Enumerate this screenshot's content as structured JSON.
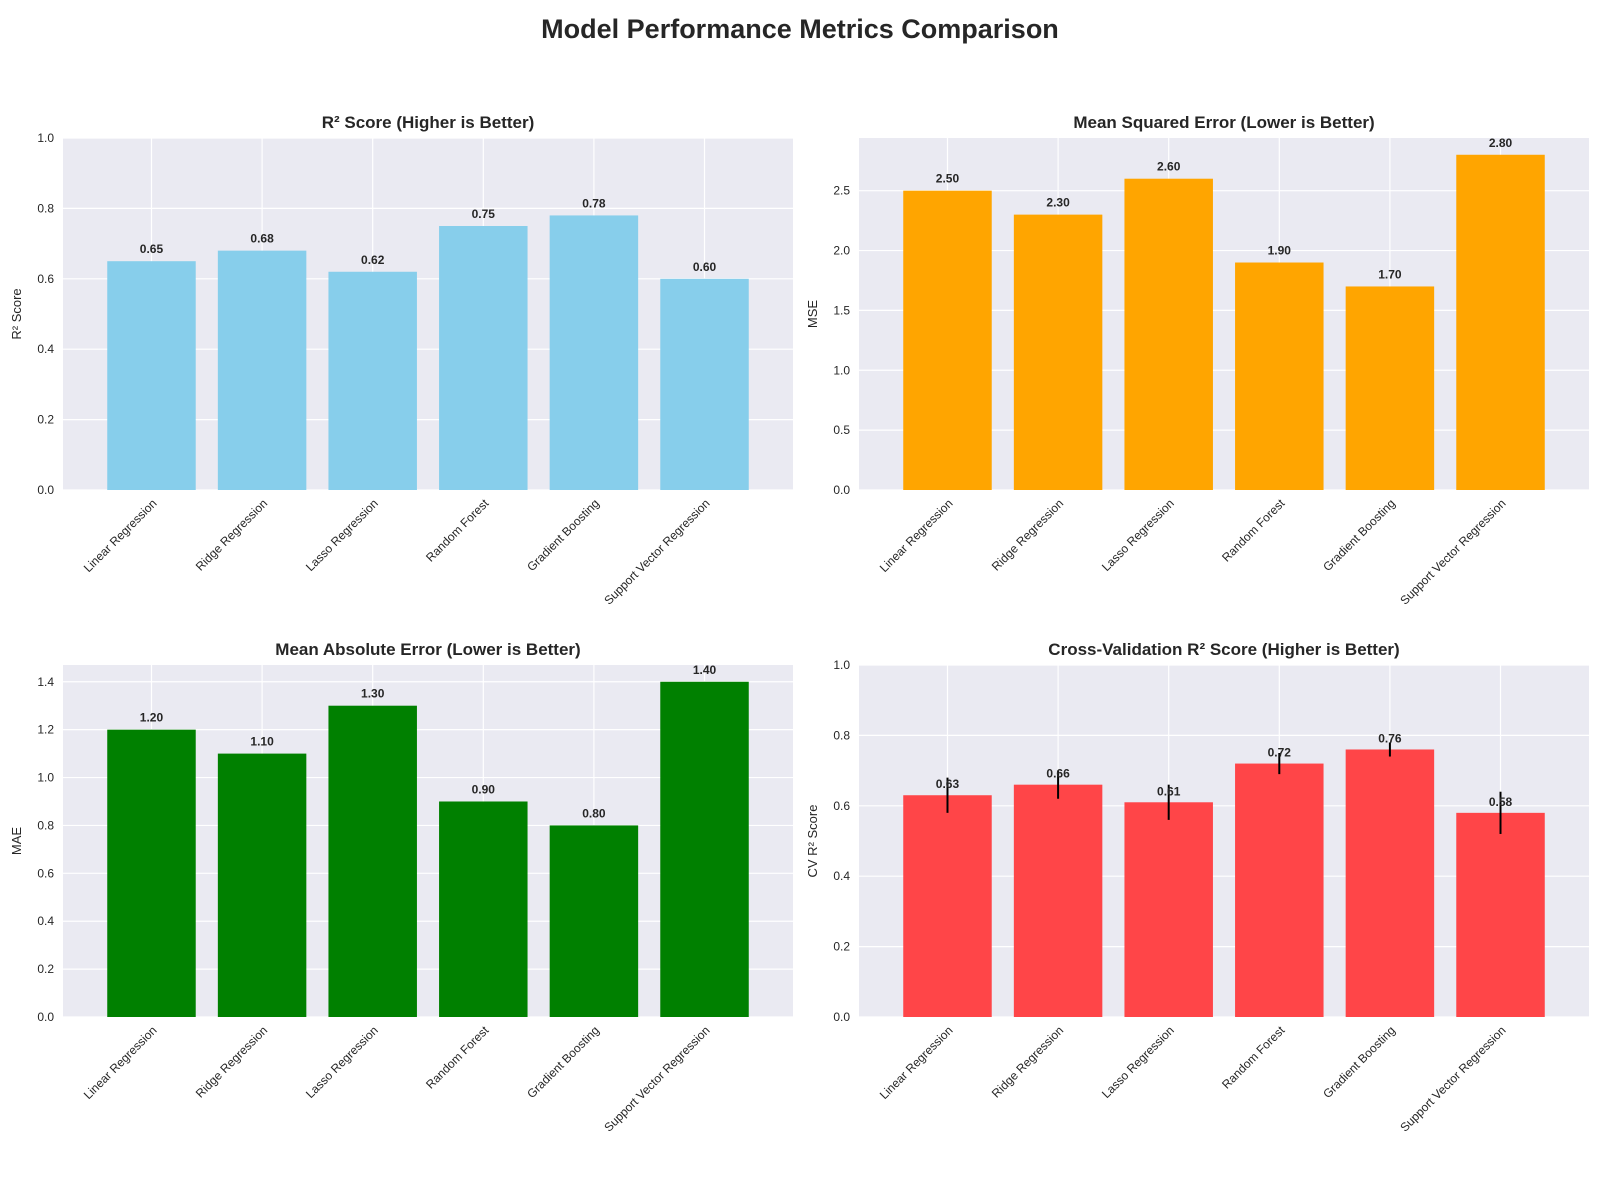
{
  "figure": {
    "title": "Model Performance Metrics Comparison"
  },
  "chart_data": [
    {
      "type": "bar",
      "title": "R² Score (Higher is Better)",
      "xlabel": "",
      "ylabel": "R² Score",
      "categories": [
        "Linear Regression",
        "Ridge Regression",
        "Lasso Regression",
        "Random Forest",
        "Gradient Boosting",
        "Support Vector Regression"
      ],
      "values": [
        0.65,
        0.68,
        0.62,
        0.75,
        0.78,
        0.6
      ],
      "value_labels": [
        "0.65",
        "0.68",
        "0.62",
        "0.75",
        "0.78",
        "0.60"
      ],
      "ylim": [
        0,
        1.0
      ],
      "yticks": [
        0.0,
        0.2,
        0.4,
        0.6,
        0.8,
        1.0
      ],
      "ytick_labels": [
        "0.0",
        "0.2",
        "0.4",
        "0.6",
        "0.8",
        "1.0"
      ],
      "color": "#87CEEB",
      "grid": true
    },
    {
      "type": "bar",
      "title": "Mean Squared Error (Lower is Better)",
      "xlabel": "",
      "ylabel": "MSE",
      "categories": [
        "Linear Regression",
        "Ridge Regression",
        "Lasso Regression",
        "Random Forest",
        "Gradient Boosting",
        "Support Vector Regression"
      ],
      "values": [
        2.5,
        2.3,
        2.6,
        1.9,
        1.7,
        2.8
      ],
      "value_labels": [
        "2.50",
        "2.30",
        "2.60",
        "1.90",
        "1.70",
        "2.80"
      ],
      "ylim": [
        0,
        2.94
      ],
      "yticks": [
        0.0,
        0.5,
        1.0,
        1.5,
        2.0,
        2.5
      ],
      "ytick_labels": [
        "0.0",
        "0.5",
        "1.0",
        "1.5",
        "2.0",
        "2.5"
      ],
      "color": "#FFA500",
      "grid": true
    },
    {
      "type": "bar",
      "title": "Mean Absolute Error (Lower is Better)",
      "xlabel": "",
      "ylabel": "MAE",
      "categories": [
        "Linear Regression",
        "Ridge Regression",
        "Lasso Regression",
        "Random Forest",
        "Gradient Boosting",
        "Support Vector Regression"
      ],
      "values": [
        1.2,
        1.1,
        1.3,
        0.9,
        0.8,
        1.4
      ],
      "value_labels": [
        "1.20",
        "1.10",
        "1.30",
        "0.90",
        "0.80",
        "1.40"
      ],
      "ylim": [
        0,
        1.47
      ],
      "yticks": [
        0.0,
        0.2,
        0.4,
        0.6,
        0.8,
        1.0,
        1.2,
        1.4
      ],
      "ytick_labels": [
        "0.0",
        "0.2",
        "0.4",
        "0.6",
        "0.8",
        "1.0",
        "1.2",
        "1.4"
      ],
      "color": "#008000",
      "grid": true
    },
    {
      "type": "bar",
      "title": "Cross-Validation R² Score (Higher is Better)",
      "xlabel": "",
      "ylabel": "CV R² Score",
      "categories": [
        "Linear Regression",
        "Ridge Regression",
        "Lasso Regression",
        "Random Forest",
        "Gradient Boosting",
        "Support Vector Regression"
      ],
      "values": [
        0.63,
        0.66,
        0.61,
        0.72,
        0.76,
        0.58
      ],
      "errors": [
        0.05,
        0.04,
        0.05,
        0.03,
        0.02,
        0.06
      ],
      "value_labels": [
        "0.63",
        "0.66",
        "0.61",
        "0.72",
        "0.76",
        "0.58"
      ],
      "ylim": [
        0,
        1.0
      ],
      "yticks": [
        0.0,
        0.2,
        0.4,
        0.6,
        0.8,
        1.0
      ],
      "ytick_labels": [
        "0.0",
        "0.2",
        "0.4",
        "0.6",
        "0.8",
        "1.0"
      ],
      "color": "#FF4548",
      "grid": true
    }
  ]
}
